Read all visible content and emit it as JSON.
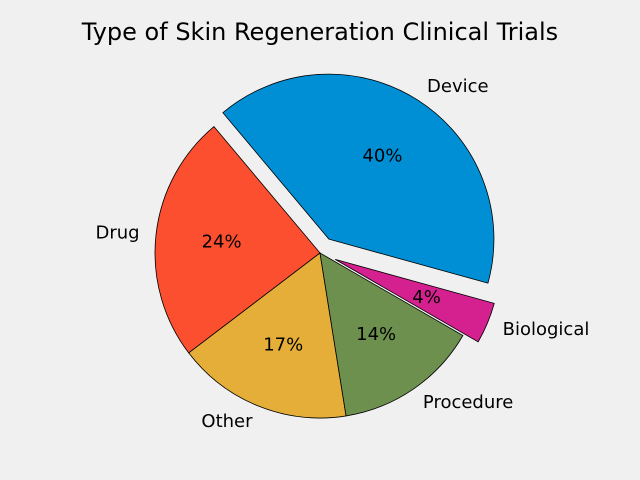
{
  "chart_data": {
    "type": "pie",
    "title": "Type of Skin Regeneration Clinical Trials",
    "startangle_deg": -30,
    "counterclock": true,
    "slices": [
      {
        "label": "Biological",
        "value": 4,
        "pct_label": "4%",
        "color": "#d5218f",
        "explode": 0.1
      },
      {
        "label": "Device",
        "value": 40,
        "pct_label": "40%",
        "color": "#008fd5",
        "explode": 0.1
      },
      {
        "label": "Drug",
        "value": 24,
        "pct_label": "24%",
        "color": "#fc4f30",
        "explode": 0
      },
      {
        "label": "Other",
        "value": 17,
        "pct_label": "17%",
        "color": "#e5ae38",
        "explode": 0
      },
      {
        "label": "Procedure",
        "value": 14,
        "pct_label": "14%",
        "color": "#6d904f",
        "explode": 0
      }
    ]
  }
}
